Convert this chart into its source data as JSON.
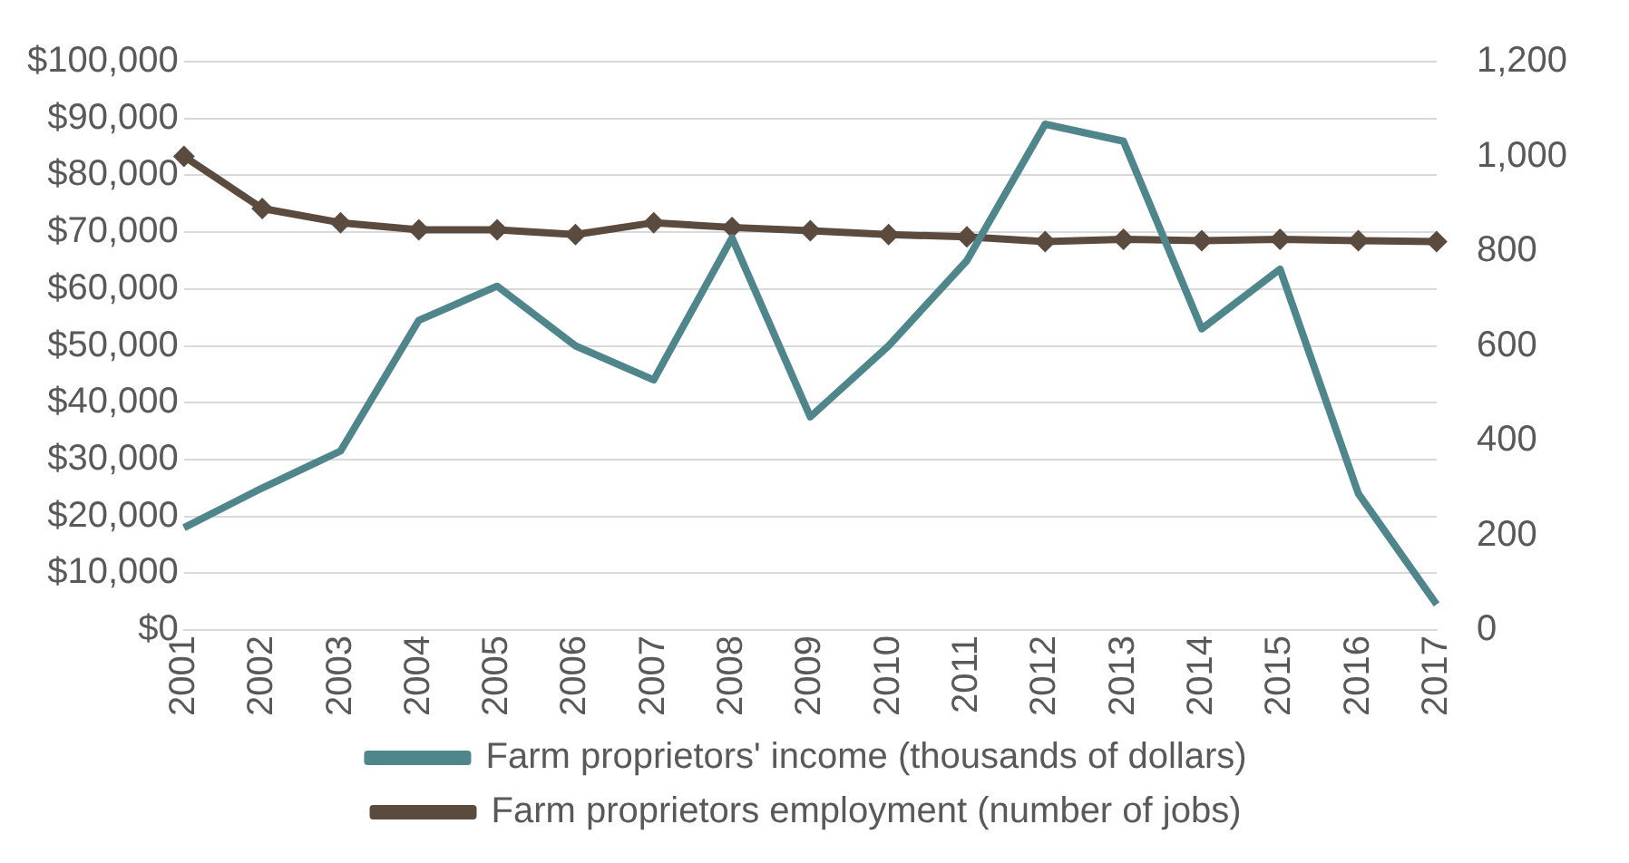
{
  "chart_data": {
    "type": "line",
    "categories": [
      "2001",
      "2002",
      "2003",
      "2004",
      "2005",
      "2006",
      "2007",
      "2008",
      "2009",
      "2010",
      "2011",
      "2012",
      "2013",
      "2014",
      "2015",
      "2016",
      "2017"
    ],
    "series": [
      {
        "name": "Farm proprietors' income (thousands of dollars)",
        "color": "#4e868c",
        "marker": "none",
        "values": [
          18000,
          25000,
          31500,
          54500,
          60500,
          50000,
          44000,
          69000,
          37500,
          50000,
          65000,
          89000,
          86000,
          53000,
          63500,
          24000,
          4500
        ]
      },
      {
        "name": "Farm proprietors employment (number of jobs)",
        "color": "#5b4a3e",
        "marker": "diamond",
        "axis": "y2",
        "values": [
          1000,
          890,
          860,
          845,
          845,
          835,
          860,
          850,
          843,
          835,
          830,
          820,
          825,
          822,
          825,
          822,
          820
        ]
      }
    ],
    "ylim": [
      0,
      100000
    ],
    "yticks": [
      {
        "value": 0,
        "label": "$0"
      },
      {
        "value": 10000,
        "label": "$10,000"
      },
      {
        "value": 20000,
        "label": "$20,000"
      },
      {
        "value": 30000,
        "label": "$30,000"
      },
      {
        "value": 40000,
        "label": "$40,000"
      },
      {
        "value": 50000,
        "label": "$50,000"
      },
      {
        "value": 60000,
        "label": "$60,000"
      },
      {
        "value": 70000,
        "label": "$70,000"
      },
      {
        "value": 80000,
        "label": "$80,000"
      },
      {
        "value": 90000,
        "label": "$90,000"
      },
      {
        "value": 100000,
        "label": "$100,000"
      }
    ],
    "y2lim": [
      0,
      1200
    ],
    "y2ticks": [
      0,
      200,
      400,
      600,
      800,
      {
        "value": 1000,
        "label": "1,000"
      },
      {
        "value": 1200,
        "label": "1,200"
      }
    ],
    "grid": "y",
    "legend": "bottom",
    "line_style": "solid"
  }
}
